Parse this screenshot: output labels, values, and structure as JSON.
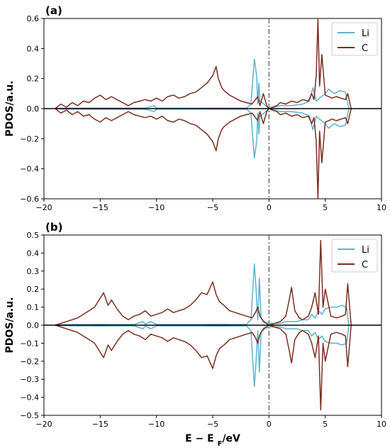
{
  "chart_data": [
    {
      "type": "line",
      "panel_label": "(a)",
      "ylabel": "PDOS/a.u.",
      "xlabel": "",
      "xlim": [
        -20,
        10
      ],
      "ylim": [
        -0.6,
        0.6
      ],
      "xticks": [
        "−20",
        "−15",
        "−10",
        "−5",
        "0",
        "5",
        "10"
      ],
      "yticks": [
        "−0.6",
        "−0.4",
        "−0.2",
        "0.0",
        "0.2",
        "0.4",
        "0.6"
      ],
      "legend_position": "top-right",
      "fermi_line_x": 0,
      "series": [
        {
          "name": "Li",
          "color": "#5bb3d0",
          "x": [
            -19,
            -18.5,
            -18,
            -17,
            -16,
            -15,
            -14,
            -13,
            -12,
            -11,
            -10.2,
            -10,
            -9,
            -8,
            -7,
            -6,
            -5,
            -4,
            -3,
            -2,
            -1.6,
            -1.3,
            -1.1,
            -1.0,
            -0.9,
            -0.8,
            -0.6,
            -0.3,
            0,
            0.5,
            1,
            2,
            3,
            3.6,
            3.9,
            4.2,
            4.5,
            5,
            5.3,
            5.8,
            6.3,
            6.8,
            7.1
          ],
          "values": [
            0,
            0.002,
            0.003,
            0.003,
            0.004,
            0.004,
            0.004,
            0.003,
            0.004,
            0.004,
            0.02,
            0.004,
            0.003,
            0.003,
            0.003,
            0.003,
            0.004,
            0.004,
            0.003,
            0.004,
            0.03,
            0.33,
            0.22,
            0.03,
            0.17,
            0.05,
            0.04,
            0.02,
            0,
            0.01,
            0.02,
            0.02,
            0.03,
            0.05,
            0.14,
            0.05,
            0.07,
            0.1,
            0.13,
            0.1,
            0.12,
            0.11,
            0
          ]
        },
        {
          "name": "C",
          "color": "#7a2e1f",
          "x": [
            -19,
            -18.5,
            -18,
            -17.5,
            -17,
            -16.5,
            -16,
            -15.5,
            -15,
            -14.5,
            -14,
            -13.5,
            -13,
            -12.5,
            -12,
            -11.5,
            -11,
            -10.5,
            -10,
            -9.5,
            -9,
            -8.5,
            -8,
            -7.5,
            -7,
            -6.5,
            -6,
            -5.5,
            -5,
            -4.7,
            -4.5,
            -4.2,
            -4,
            -3.5,
            -3,
            -2.5,
            -2,
            -1.5,
            -1.2,
            -1,
            -0.8,
            -0.5,
            -0.2,
            0,
            0.3,
            0.7,
            1,
            1.5,
            2,
            2.5,
            3,
            3.5,
            3.8,
            4.0,
            4.2,
            4.35,
            4.5,
            4.7,
            5,
            5.3,
            5.6,
            6,
            6.4,
            6.8,
            7.0,
            7.3
          ],
          "values": [
            0,
            0.03,
            0.01,
            0.04,
            0.02,
            0.05,
            0.04,
            0.07,
            0.09,
            0.06,
            0.08,
            0.06,
            0.04,
            0.02,
            0.04,
            0.05,
            0.06,
            0.05,
            0.07,
            0.05,
            0.08,
            0.09,
            0.07,
            0.08,
            0.1,
            0.11,
            0.14,
            0.17,
            0.22,
            0.28,
            0.2,
            0.14,
            0.12,
            0.09,
            0.07,
            0.05,
            0.04,
            0.03,
            0.06,
            0.08,
            0.02,
            0.1,
            0.02,
            0,
            0.01,
            0.02,
            0.04,
            0.03,
            0.05,
            0.04,
            0.06,
            0.05,
            0.1,
            0.06,
            0.22,
            0.6,
            0.15,
            0.36,
            0.09,
            0.08,
            0.07,
            0.08,
            0.07,
            0.06,
            0.1,
            0
          ]
        }
      ]
    },
    {
      "type": "line",
      "panel_label": "(b)",
      "ylabel": "PDOS/a.u.",
      "xlabel": "E − E_F/eV",
      "xlim": [
        -20,
        10
      ],
      "ylim": [
        -0.5,
        0.5
      ],
      "xticks": [
        "−20",
        "−15",
        "−10",
        "−5",
        "0",
        "5",
        "10"
      ],
      "yticks": [
        "−0.5",
        "−0.4",
        "−0.3",
        "−0.2",
        "−0.1",
        "0.0",
        "0.1",
        "0.2",
        "0.3",
        "0.4",
        "0.5"
      ],
      "legend_position": "top-right",
      "fermi_line_x": 0,
      "series": [
        {
          "name": "Li",
          "color": "#5bb3d0",
          "x": [
            -19,
            -18,
            -17,
            -16,
            -15,
            -14,
            -13,
            -12,
            -11.2,
            -11,
            -10.5,
            -10,
            -9,
            -8,
            -7,
            -6,
            -5,
            -4,
            -3,
            -2,
            -1.6,
            -1.3,
            -1.15,
            -1.0,
            -0.85,
            -0.7,
            -0.4,
            0,
            0.5,
            1,
            1.5,
            2,
            2.5,
            3,
            3.5,
            3.8,
            4.1,
            4.4,
            4.7,
            5,
            5.5,
            6,
            6.5,
            6.9,
            7.1
          ],
          "values": [
            0,
            0.003,
            0.004,
            0.004,
            0.005,
            0.004,
            0.004,
            0.004,
            0.02,
            0.005,
            0.02,
            0.004,
            0.004,
            0.004,
            0.004,
            0.004,
            0.005,
            0.005,
            0.004,
            0.004,
            0.03,
            0.34,
            0.2,
            0.03,
            0.26,
            0.04,
            0.02,
            0.01,
            0.01,
            0.01,
            0.02,
            0.02,
            0.02,
            0.03,
            0.03,
            0.06,
            0.04,
            0.08,
            0.06,
            0.09,
            0.1,
            0.1,
            0.11,
            0.1,
            0
          ]
        },
        {
          "name": "C",
          "color": "#7a2e1f",
          "x": [
            -19,
            -18.5,
            -18,
            -17.5,
            -17,
            -16.5,
            -16,
            -15.5,
            -15,
            -14.7,
            -14.3,
            -14,
            -13.5,
            -13,
            -12.5,
            -12,
            -11.5,
            -11,
            -10.5,
            -10,
            -9.5,
            -9,
            -8.5,
            -8,
            -7.5,
            -7,
            -6.5,
            -6,
            -5.5,
            -5,
            -4.7,
            -4.4,
            -4,
            -3.5,
            -3,
            -2.5,
            -2,
            -1.5,
            -1.2,
            -1,
            -0.8,
            -0.5,
            0,
            0.5,
            1,
            1.5,
            1.8,
            2.0,
            2.3,
            2.7,
            3,
            3.5,
            3.8,
            4.1,
            4.4,
            4.6,
            4.8,
            5.0,
            5.5,
            6,
            6.5,
            6.8,
            7.0,
            7.3
          ],
          "values": [
            0,
            0.01,
            0.02,
            0.03,
            0.04,
            0.06,
            0.08,
            0.1,
            0.15,
            0.18,
            0.11,
            0.14,
            0.09,
            0.05,
            0.03,
            0.05,
            0.06,
            0.08,
            0.05,
            0.06,
            0.07,
            0.09,
            0.07,
            0.08,
            0.09,
            0.11,
            0.14,
            0.18,
            0.17,
            0.24,
            0.17,
            0.13,
            0.11,
            0.08,
            0.07,
            0.06,
            0.05,
            0.04,
            0.07,
            0.1,
            0.05,
            0.02,
            0,
            0.01,
            0.02,
            0.05,
            0.14,
            0.21,
            0.08,
            0.04,
            0.03,
            0.05,
            0.1,
            0.18,
            0.06,
            0.47,
            0.1,
            0.2,
            0.05,
            0.04,
            0.05,
            0.06,
            0.23,
            0
          ]
        }
      ]
    }
  ]
}
